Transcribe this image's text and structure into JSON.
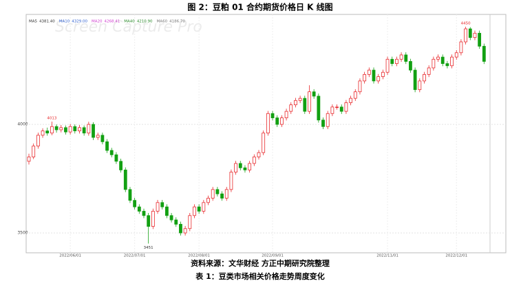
{
  "chart_data": {
    "type": "candlestick",
    "title": "图 2：豆粕 01 合约期货价格日 K 线图",
    "source": "资料来源：文华财经 方正中期研究院整理",
    "next_caption": "表 1：豆类市场相关价格走势周度变化",
    "watermark": "Screen Capture Pro",
    "up_color": "#e8272a",
    "down_color": "#12a012",
    "ylim": [
      3418,
      4478
    ],
    "yticks": [
      3500,
      4000
    ],
    "grid": true,
    "xlim": [
      -1,
      103
    ],
    "xticks": [
      {
        "value": 9,
        "label": "2022/06/01"
      },
      {
        "value": 23,
        "label": "2022/07/01"
      },
      {
        "value": 37,
        "label": "2022/08/01"
      },
      {
        "value": 53,
        "label": "2022/09/01"
      },
      {
        "value": 78,
        "label": "2022/11/01"
      },
      {
        "value": 93,
        "label": "2022/12/01"
      }
    ],
    "indicators": [
      {
        "name": "MA5",
        "value": 4381.4,
        "label": "4381.40",
        "color": "#333333"
      },
      {
        "name": "MA10",
        "value": 4329,
        "label": "4329.00",
        "color": "#3060d0"
      },
      {
        "name": "MA20",
        "value": 4268.41,
        "label": "4268.41",
        "color": "#d040d0"
      },
      {
        "name": "MA40",
        "value": 4210.9,
        "label": "4210.90",
        "color": "#2a8a2a"
      },
      {
        "name": "MA60",
        "value": 4186.7,
        "label": "4186.70",
        "color": "#777777"
      }
    ],
    "annotations": [
      {
        "label": "4013",
        "value": 4013,
        "at": 5
      },
      {
        "label": "3451",
        "value": 3451,
        "at": 26
      },
      {
        "label": "4450",
        "value": 4450,
        "at": 95
      }
    ],
    "ohlc": [
      [
        3830,
        3865,
        3815,
        3850
      ],
      [
        3850,
        3912,
        3840,
        3900
      ],
      [
        3900,
        3962,
        3888,
        3950
      ],
      [
        3950,
        3982,
        3938,
        3970
      ],
      [
        3970,
        3985,
        3948,
        3960
      ],
      [
        3960,
        4013,
        3950,
        3990
      ],
      [
        3990,
        4000,
        3962,
        3975
      ],
      [
        3975,
        3997,
        3963,
        3985
      ],
      [
        3985,
        3995,
        3953,
        3965
      ],
      [
        3965,
        4002,
        3953,
        3990
      ],
      [
        3990,
        4000,
        3958,
        3970
      ],
      [
        3970,
        3997,
        3958,
        3985
      ],
      [
        3985,
        3995,
        3948,
        3960
      ],
      [
        3960,
        4012,
        3948,
        4000
      ],
      [
        4000,
        4010,
        3928,
        3940
      ],
      [
        3940,
        3962,
        3928,
        3950
      ],
      [
        3950,
        3962,
        3908,
        3920
      ],
      [
        3920,
        3932,
        3868,
        3880
      ],
      [
        3880,
        3892,
        3848,
        3860
      ],
      [
        3860,
        3872,
        3818,
        3830
      ],
      [
        3830,
        3842,
        3778,
        3790
      ],
      [
        3790,
        3802,
        3688,
        3700
      ],
      [
        3700,
        3712,
        3638,
        3650
      ],
      [
        3650,
        3662,
        3608,
        3620
      ],
      [
        3620,
        3632,
        3588,
        3600
      ],
      [
        3600,
        3612,
        3568,
        3580
      ],
      [
        3580,
        3592,
        3451,
        3530
      ],
      [
        3530,
        3612,
        3518,
        3600
      ],
      [
        3600,
        3652,
        3588,
        3640
      ],
      [
        3640,
        3652,
        3608,
        3620
      ],
      [
        3620,
        3632,
        3568,
        3580
      ],
      [
        3580,
        3592,
        3548,
        3560
      ],
      [
        3560,
        3572,
        3528,
        3540
      ],
      [
        3540,
        3552,
        3488,
        3500
      ],
      [
        3500,
        3532,
        3488,
        3520
      ],
      [
        3520,
        3592,
        3508,
        3580
      ],
      [
        3580,
        3632,
        3568,
        3620
      ],
      [
        3620,
        3632,
        3588,
        3600
      ],
      [
        3600,
        3652,
        3588,
        3640
      ],
      [
        3640,
        3672,
        3628,
        3660
      ],
      [
        3660,
        3712,
        3648,
        3700
      ],
      [
        3700,
        3712,
        3668,
        3680
      ],
      [
        3680,
        3692,
        3648,
        3660
      ],
      [
        3660,
        3712,
        3648,
        3700
      ],
      [
        3700,
        3792,
        3688,
        3780
      ],
      [
        3780,
        3832,
        3768,
        3820
      ],
      [
        3820,
        3832,
        3788,
        3800
      ],
      [
        3800,
        3812,
        3778,
        3790
      ],
      [
        3790,
        3832,
        3778,
        3820
      ],
      [
        3820,
        3862,
        3808,
        3850
      ],
      [
        3850,
        3882,
        3838,
        3870
      ],
      [
        3870,
        3972,
        3858,
        3960
      ],
      [
        3960,
        4062,
        3948,
        4050
      ],
      [
        4050,
        4062,
        4018,
        4030
      ],
      [
        4030,
        4042,
        3988,
        4000
      ],
      [
        4000,
        4042,
        3988,
        4030
      ],
      [
        4030,
        4072,
        4018,
        4060
      ],
      [
        4060,
        4102,
        4048,
        4090
      ],
      [
        4090,
        4122,
        4078,
        4110
      ],
      [
        4110,
        4132,
        4098,
        4120
      ],
      [
        4120,
        4132,
        4048,
        4060
      ],
      [
        4060,
        4180,
        4048,
        4150
      ],
      [
        4150,
        4162,
        4118,
        4130
      ],
      [
        4130,
        4142,
        4008,
        4020
      ],
      [
        4020,
        4032,
        3978,
        3990
      ],
      [
        3990,
        4062,
        3978,
        4050
      ],
      [
        4050,
        4092,
        4038,
        4080
      ],
      [
        4080,
        4092,
        4068,
        4080
      ],
      [
        4080,
        4092,
        4048,
        4060
      ],
      [
        4060,
        4112,
        4048,
        4100
      ],
      [
        4100,
        4132,
        4088,
        4120
      ],
      [
        4120,
        4162,
        4108,
        4150
      ],
      [
        4150,
        4212,
        4138,
        4200
      ],
      [
        4200,
        4242,
        4188,
        4230
      ],
      [
        4230,
        4262,
        4218,
        4250
      ],
      [
        4250,
        4262,
        4188,
        4200
      ],
      [
        4200,
        4232,
        4188,
        4220
      ],
      [
        4220,
        4252,
        4208,
        4240
      ],
      [
        4240,
        4312,
        4228,
        4300
      ],
      [
        4300,
        4312,
        4268,
        4280
      ],
      [
        4280,
        4312,
        4268,
        4300
      ],
      [
        4300,
        4332,
        4288,
        4320
      ],
      [
        4320,
        4332,
        4278,
        4290
      ],
      [
        4290,
        4302,
        4238,
        4250
      ],
      [
        4250,
        4262,
        4148,
        4160
      ],
      [
        4160,
        4212,
        4148,
        4200
      ],
      [
        4200,
        4242,
        4188,
        4230
      ],
      [
        4230,
        4272,
        4218,
        4260
      ],
      [
        4260,
        4312,
        4248,
        4300
      ],
      [
        4300,
        4322,
        4288,
        4310
      ],
      [
        4310,
        4322,
        4268,
        4280
      ],
      [
        4280,
        4292,
        4258,
        4270
      ],
      [
        4270,
        4322,
        4258,
        4310
      ],
      [
        4310,
        4342,
        4298,
        4330
      ],
      [
        4330,
        4392,
        4318,
        4380
      ],
      [
        4380,
        4450,
        4368,
        4440
      ],
      [
        4440,
        4448,
        4388,
        4400
      ],
      [
        4400,
        4432,
        4388,
        4420
      ],
      [
        4420,
        4432,
        4348,
        4360
      ],
      [
        4360,
        4372,
        4278,
        4290
      ]
    ]
  }
}
